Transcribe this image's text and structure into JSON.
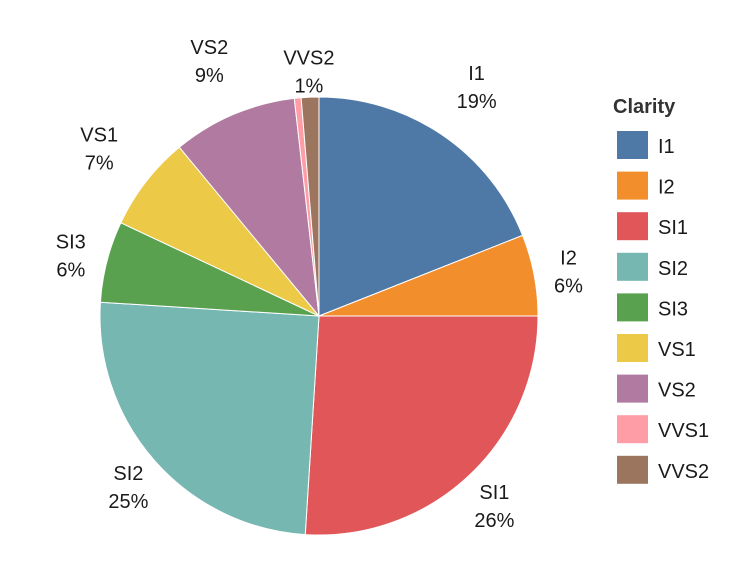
{
  "chart_data": {
    "type": "pie",
    "title": "",
    "legend_title": "Clarity",
    "legend_position": "right",
    "start": "12 o'clock",
    "direction": "clockwise",
    "slices": [
      {
        "label": "I1",
        "value": 19.0,
        "pct_label": "19%",
        "color": "#4e79a7"
      },
      {
        "label": "I2",
        "value": 6.0,
        "pct_label": "6%",
        "color": "#f28e2b"
      },
      {
        "label": "SI1",
        "value": 26.0,
        "pct_label": "26%",
        "color": "#e15759"
      },
      {
        "label": "SI2",
        "value": 25.0,
        "pct_label": "25%",
        "color": "#76b7b2"
      },
      {
        "label": "SI3",
        "value": 6.0,
        "pct_label": "6%",
        "color": "#59a14f"
      },
      {
        "label": "VS1",
        "value": 7.0,
        "pct_label": "7%",
        "color": "#edc948"
      },
      {
        "label": "VS2",
        "value": 9.2,
        "pct_label": "9%",
        "color": "#b07aa1"
      },
      {
        "label": "VVS1",
        "value": 0.5,
        "pct_label": "",
        "color": "#ff9da7"
      },
      {
        "label": "VVS2",
        "value": 1.3,
        "pct_label": "1%",
        "color": "#9c755f"
      }
    ]
  }
}
